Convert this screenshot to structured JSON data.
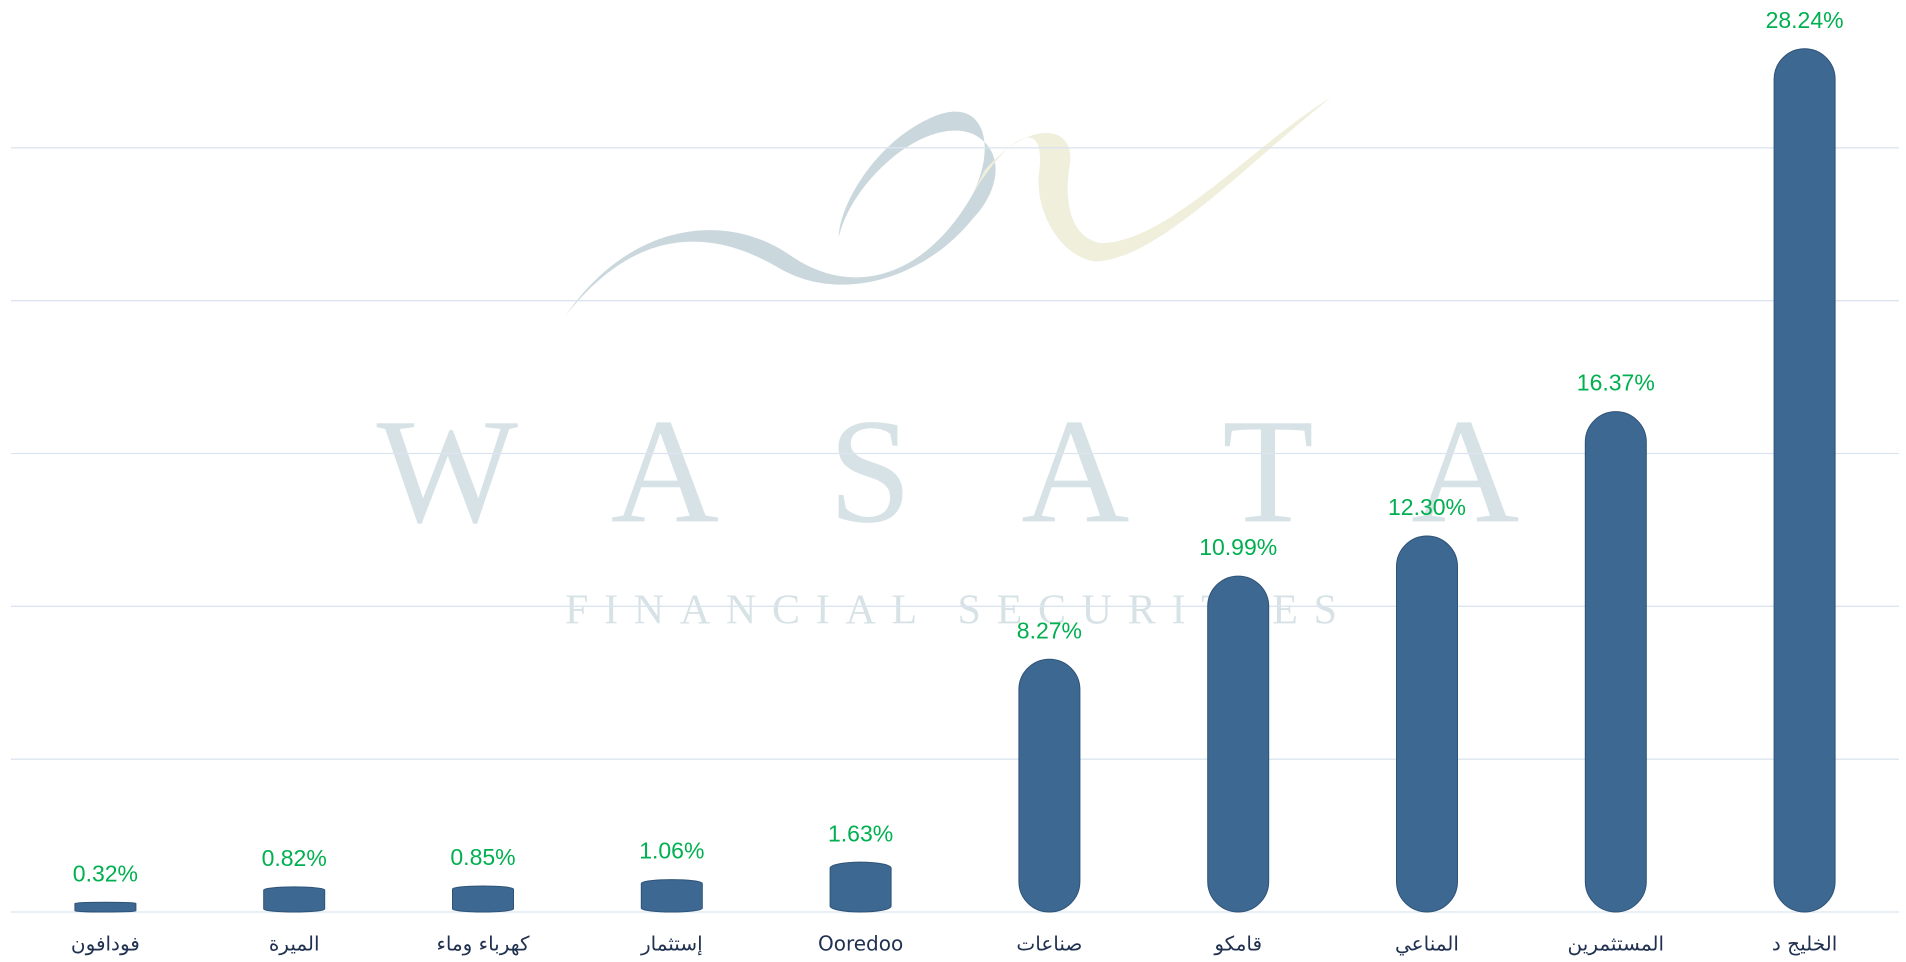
{
  "chart_data": {
    "type": "bar",
    "categories": [
      "فودافون",
      "الميرة",
      "كهرباء وماء",
      "إستثمار",
      "Ooredoo",
      "صناعات",
      "قامكو",
      "المناعي",
      "المستثمرين",
      "الخليج د"
    ],
    "values": [
      0.32,
      0.82,
      0.85,
      1.06,
      1.63,
      8.27,
      10.99,
      12.3,
      16.37,
      28.24
    ],
    "value_labels": [
      "0.32%",
      "0.82%",
      "0.85%",
      "1.06%",
      "1.63%",
      "8.27%",
      "10.99%",
      "12.30%",
      "16.37%",
      "28.24%"
    ],
    "color": "#3d6891",
    "label_color": "#00b050",
    "ylim": [
      0,
      30
    ],
    "yticks": [
      0,
      5,
      10,
      15,
      20,
      25
    ],
    "grid": true,
    "watermark": {
      "title": "WASATA",
      "subtitle": "FINANCIAL SECURITIES"
    }
  }
}
